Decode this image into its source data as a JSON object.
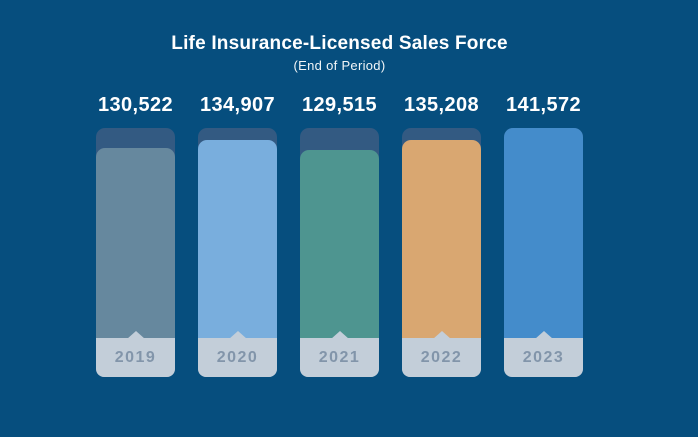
{
  "chart_data": {
    "type": "bar",
    "title": "Life Insurance-Licensed Sales Force",
    "subtitle": "(End of Period)",
    "categories": [
      "2019",
      "2020",
      "2021",
      "2022",
      "2023"
    ],
    "values": [
      130522,
      134907,
      129515,
      135208,
      141572
    ],
    "value_labels": [
      "130,522",
      "134,907",
      "129,515",
      "135,208",
      "141,572"
    ],
    "bar_colors": [
      "#66889e",
      "#79aedd",
      "#4e9590",
      "#d9a771",
      "#448ccb"
    ],
    "colors": {
      "background": "#064e7e",
      "track": "#335a82",
      "label_band": "#c3ced9",
      "label_text": "#8295aa",
      "text": "#ffffff"
    },
    "layout": {
      "grid": false,
      "legend": false,
      "value_label_position": "above-bars",
      "category_label_position": "inside-bottom-band"
    }
  }
}
